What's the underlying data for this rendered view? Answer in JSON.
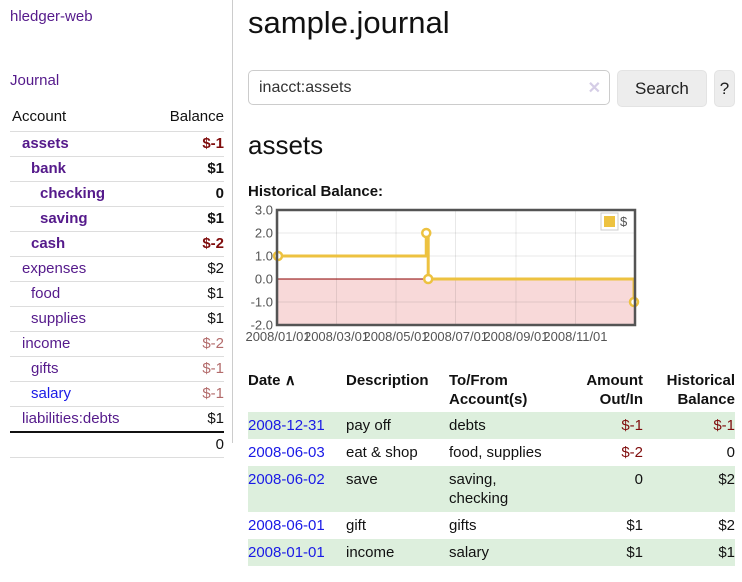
{
  "colors": {
    "link_purple": "#551a8b",
    "link_blue": "#1a1ae6",
    "negative_strong": "#7f0c0c",
    "negative_muted": "#b36b6b",
    "row_green": "#ddefdd",
    "chart_line": "#EDC240",
    "chart_negative_fill": "#f8d9d9",
    "chart_zero_line": "#8b0000"
  },
  "sidebar": {
    "app_title": "hledger-web",
    "journal_link": "Journal",
    "table": {
      "account_header": "Account",
      "balance_header": "Balance",
      "rows": [
        {
          "name": "assets",
          "balance": "$-1",
          "indent": 1,
          "bold": true,
          "neg": "strong"
        },
        {
          "name": "bank",
          "balance": "$1",
          "indent": 2,
          "bold": true
        },
        {
          "name": "checking",
          "balance": "0",
          "indent": 3,
          "bold": true
        },
        {
          "name": "saving",
          "balance": "$1",
          "indent": 3,
          "bold": true
        },
        {
          "name": "cash",
          "balance": "$-2",
          "indent": 2,
          "bold": true,
          "neg": "strong"
        },
        {
          "name": "expenses",
          "balance": "$2",
          "indent": 1
        },
        {
          "name": "food",
          "balance": "$1",
          "indent": 2
        },
        {
          "name": "supplies",
          "balance": "$1",
          "indent": 2
        },
        {
          "name": "income",
          "balance": "$-2",
          "indent": 1,
          "neg": "muted"
        },
        {
          "name": "gifts",
          "balance": "$-1",
          "indent": 2,
          "neg": "muted"
        },
        {
          "name": "salary",
          "balance": "$-1",
          "indent": 2,
          "neg": "muted",
          "blue": true
        },
        {
          "name": "liabilities:debts",
          "balance": "$1",
          "indent": 1
        }
      ],
      "total": "0"
    }
  },
  "header": {
    "title": "sample.journal"
  },
  "search": {
    "value": "inacct:assets",
    "clear_icon": "✕",
    "search_label": "Search",
    "help_label": "?"
  },
  "account_page": {
    "heading": "assets",
    "chart_title": "Historical Balance:"
  },
  "chart_data": {
    "type": "line",
    "title": "Historical Balance:",
    "step": true,
    "series": [
      {
        "name": "$",
        "color": "#EDC240",
        "points": [
          [
            "2008-01-01",
            1
          ],
          [
            "2008-06-01",
            2
          ],
          [
            "2008-06-03",
            0
          ],
          [
            "2008-12-31",
            -1
          ]
        ]
      }
    ],
    "x_start": "2008/01/01",
    "x_end": "2008/12/31",
    "x_ticks": [
      "2008/01/01",
      "2008/03/01",
      "2008/05/01",
      "2008/07/01",
      "2008/09/01",
      "2008/11/01"
    ],
    "y_ticks": [
      "3.0",
      "2.0",
      "1.0",
      "0.0",
      "-1.0",
      "-2.0"
    ],
    "ylim": [
      -2,
      3
    ],
    "grid": true,
    "legend": {
      "position": "top-right",
      "label": "$",
      "swatch": "#EDC240"
    },
    "negative_region_fill": "#f8d9d9",
    "zero_line_color": "#8b0000"
  },
  "register": {
    "sort_icon": "∧",
    "headers": {
      "date": "Date",
      "description": "Description",
      "accounts": "To/From Account(s)",
      "amount": "Amount Out/In",
      "balance": "Historical Balance"
    },
    "rows": [
      {
        "date": "2008-12-31",
        "description": "pay off",
        "accounts": "debts",
        "amount": "$-1",
        "amount_neg": true,
        "balance": "$-1",
        "balance_neg": true
      },
      {
        "date": "2008-06-03",
        "description": "eat & shop",
        "accounts": "food, supplies",
        "amount": "$-2",
        "amount_neg": true,
        "balance": "0",
        "balance_neg": false
      },
      {
        "date": "2008-06-02",
        "description": "save",
        "accounts": "saving,\nchecking",
        "amount": "0",
        "amount_neg": false,
        "balance": "$2",
        "balance_neg": false
      },
      {
        "date": "2008-06-01",
        "description": "gift",
        "accounts": "gifts",
        "amount": "$1",
        "amount_neg": false,
        "balance": "$2",
        "balance_neg": false
      },
      {
        "date": "2008-01-01",
        "description": "income",
        "accounts": "salary",
        "amount": "$1",
        "amount_neg": false,
        "balance": "$1",
        "balance_neg": false
      }
    ]
  }
}
